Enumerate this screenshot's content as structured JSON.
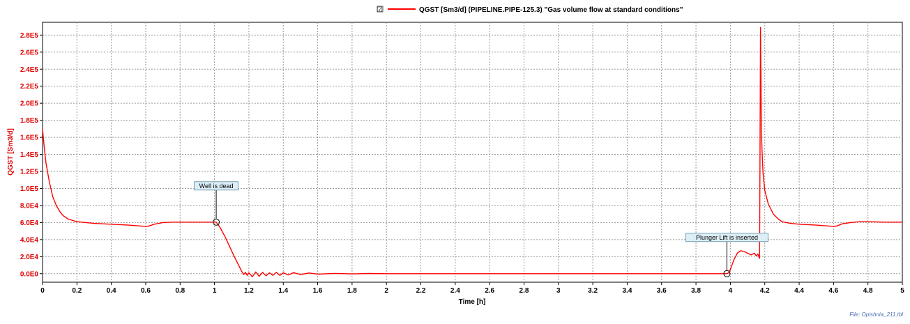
{
  "chart_data": {
    "type": "line",
    "legend": {
      "checked": true,
      "checkbox_glyph": "☑",
      "label": "QGST [Sm3/d] (PIPELINE.PIPE-125.3) \"Gas volume flow at standard conditions\"",
      "placement": "top-center"
    },
    "xlabel": "Time [h]",
    "ylabel": "QGST [Sm3/d]",
    "xlim": [
      0,
      5
    ],
    "ylim": [
      -10000,
      295000
    ],
    "grid": true,
    "x_ticks": [
      0,
      0.2,
      0.4,
      0.6,
      0.8,
      1,
      1.2,
      1.4,
      1.6,
      1.8,
      2,
      2.2,
      2.4,
      2.6,
      2.8,
      3,
      3.2,
      3.4,
      3.6,
      3.8,
      4,
      4.2,
      4.4,
      4.6,
      4.8,
      5
    ],
    "x_tick_labels": [
      "0",
      "0.2",
      "0.4",
      "0.6",
      "0.8",
      "1",
      "1.2",
      "1.4",
      "1.6",
      "1.8",
      "2",
      "2.2",
      "2.4",
      "2.6",
      "2.8",
      "3",
      "3.2",
      "3.4",
      "3.6",
      "3.8",
      "4",
      "4.2",
      "4.4",
      "4.6",
      "4.8",
      "5"
    ],
    "y_ticks": [
      0,
      20000,
      40000,
      60000,
      80000,
      100000,
      120000,
      140000,
      160000,
      180000,
      200000,
      220000,
      240000,
      260000,
      280000
    ],
    "y_tick_labels": [
      "0.0E0",
      "2.0E4",
      "4.0E4",
      "6.0E4",
      "8.0E4",
      "1.0E5",
      "1.2E5",
      "1.4E5",
      "1.6E5",
      "1.8E5",
      "2.0E5",
      "2.2E5",
      "2.4E5",
      "2.6E5",
      "2.8E5"
    ],
    "series": [
      {
        "name": "QGST [Sm3/d] (PIPELINE.PIPE-125.3)",
        "color": "#ff0000",
        "x": [
          0,
          0.01,
          0.02,
          0.04,
          0.06,
          0.08,
          0.1,
          0.12,
          0.15,
          0.2,
          0.3,
          0.4,
          0.5,
          0.6,
          0.62,
          0.65,
          0.7,
          0.75,
          0.8,
          0.9,
          1.0,
          1.01,
          1.03,
          1.06,
          1.09,
          1.12,
          1.15,
          1.16,
          1.17,
          1.18,
          1.19,
          1.2,
          1.22,
          1.24,
          1.26,
          1.28,
          1.3,
          1.32,
          1.34,
          1.36,
          1.38,
          1.4,
          1.43,
          1.46,
          1.5,
          1.55,
          1.6,
          1.7,
          1.8,
          1.9,
          2.0,
          2.5,
          3.0,
          3.5,
          3.9,
          3.98,
          3.99,
          4.0,
          4.02,
          4.04,
          4.06,
          4.08,
          4.1,
          4.12,
          4.14,
          4.15,
          4.16,
          4.165,
          4.17,
          4.172,
          4.175,
          4.178,
          4.18,
          4.185,
          4.19,
          4.2,
          4.22,
          4.25,
          4.28,
          4.3,
          4.35,
          4.4,
          4.5,
          4.6,
          4.62,
          4.65,
          4.7,
          4.75,
          4.8,
          4.9,
          5.0
        ],
        "y": [
          170000,
          148000,
          130000,
          107000,
          90000,
          80000,
          73000,
          68000,
          64000,
          61000,
          59000,
          58000,
          57000,
          55500,
          56000,
          58000,
          60000,
          60500,
          60500,
          60500,
          60500,
          60500,
          55000,
          44000,
          31000,
          18000,
          6000,
          2000,
          -1000,
          1500,
          -2000,
          1000,
          -3500,
          2000,
          -3000,
          1500,
          -2500,
          1000,
          -2000,
          1500,
          -2000,
          1000,
          -1500,
          1200,
          -1000,
          800,
          -500,
          300,
          -300,
          200,
          0,
          0,
          0,
          0,
          0,
          0,
          1000,
          5000,
          16000,
          24000,
          27000,
          26000,
          24000,
          22000,
          24000,
          21000,
          23000,
          20000,
          18000,
          120000,
          289000,
          230000,
          170000,
          140000,
          118000,
          98000,
          82000,
          70000,
          64000,
          61000,
          59000,
          58000,
          57000,
          55500,
          56000,
          58500,
          60000,
          61000,
          61000,
          60500,
          60500
        ]
      }
    ],
    "annotations": [
      {
        "text": "Well is dead",
        "x": 1.01,
        "y": 60500
      },
      {
        "text": "Plunger Lift is inserted",
        "x": 3.98,
        "y": 0
      }
    ]
  },
  "footer": {
    "file_label": "File: Opishnia_211.tbl"
  }
}
